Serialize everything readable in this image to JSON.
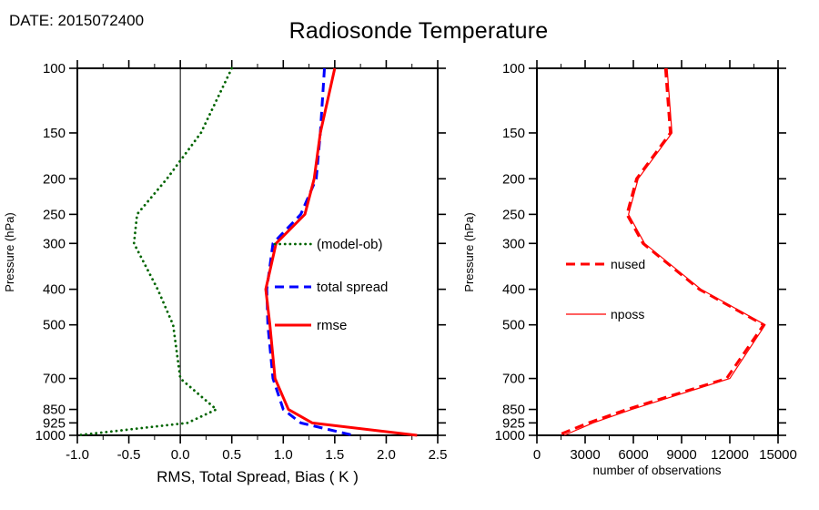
{
  "header": {
    "date_label": "DATE: 2015072400",
    "title": "Radiosonde Temperature"
  },
  "chart_data": [
    {
      "id": "verification-stats",
      "type": "line",
      "xlabel": "RMS, Total Spread, Bias ( K )",
      "ylabel": "Pressure (hPa)",
      "xlim": [
        -1.0,
        2.5
      ],
      "ylim": [
        100,
        1000
      ],
      "y_scale": "log",
      "grid": false,
      "x_ticks": [
        -1.0,
        -0.5,
        0.0,
        0.5,
        1.0,
        1.5,
        2.0,
        2.5
      ],
      "x_tick_labels": [
        "-1.0",
        "-0.5",
        "0.0",
        "0.5",
        "1.0",
        "1.5",
        "2.0",
        "2.5"
      ],
      "x_minor_step": 0.25,
      "y_ticks": [
        100,
        150,
        200,
        250,
        300,
        400,
        500,
        700,
        850,
        925,
        1000
      ],
      "y_tick_labels": [
        "100",
        "150",
        "200",
        "250",
        "300",
        "400",
        "500",
        "700",
        "850",
        "925",
        "1000"
      ],
      "zero_line": 0.0,
      "legend_position": "center-right-inside",
      "pressures": [
        100,
        150,
        200,
        250,
        300,
        400,
        500,
        700,
        850,
        925,
        1000
      ],
      "series": [
        {
          "name": "(model-ob)",
          "color": "#006400",
          "style": "dotted",
          "width": 2.8,
          "values": [
            0.5,
            0.2,
            -0.13,
            -0.42,
            -0.45,
            -0.22,
            -0.07,
            0.0,
            0.35,
            0.07,
            -1.0
          ]
        },
        {
          "name": "total spread",
          "color": "#0000ff",
          "style": "dashed",
          "width": 3,
          "values": [
            1.4,
            1.36,
            1.32,
            1.17,
            0.9,
            0.84,
            0.85,
            0.9,
            1.0,
            1.17,
            1.68
          ]
        },
        {
          "name": "rmse",
          "color": "#ff0000",
          "style": "solid",
          "width": 3,
          "values": [
            1.5,
            1.36,
            1.3,
            1.21,
            0.93,
            0.83,
            0.87,
            0.92,
            1.05,
            1.28,
            2.3
          ]
        }
      ]
    },
    {
      "id": "observation-counts",
      "type": "line",
      "xlabel": "number of observations",
      "ylabel": "Pressure (hPa)",
      "xlim": [
        0,
        15000
      ],
      "ylim": [
        100,
        1000
      ],
      "y_scale": "log",
      "grid": false,
      "x_ticks": [
        0,
        3000,
        6000,
        9000,
        12000,
        15000
      ],
      "x_tick_labels": [
        "0",
        "3000",
        "6000",
        "9000",
        "12000",
        "15000"
      ],
      "x_minor_step": 1500,
      "y_ticks": [
        100,
        150,
        200,
        250,
        300,
        400,
        500,
        700,
        850,
        925,
        1000
      ],
      "y_tick_labels": [
        "100",
        "150",
        "200",
        "250",
        "300",
        "400",
        "500",
        "700",
        "850",
        "925",
        "1000"
      ],
      "legend_position": "center-left-inside",
      "pressures": [
        100,
        150,
        200,
        250,
        300,
        400,
        500,
        700,
        850,
        925,
        1000
      ],
      "series": [
        {
          "name": "nused",
          "color": "#ff0000",
          "style": "dashed",
          "width": 3,
          "values": [
            8000,
            8300,
            6200,
            5600,
            6600,
            10100,
            14100,
            11800,
            5600,
            3200,
            1300
          ]
        },
        {
          "name": "nposs",
          "color": "#ff0000",
          "style": "solid",
          "width": 1.2,
          "values": [
            8100,
            8400,
            6300,
            5700,
            6700,
            10200,
            14200,
            12000,
            5900,
            3500,
            1700
          ]
        }
      ]
    }
  ]
}
